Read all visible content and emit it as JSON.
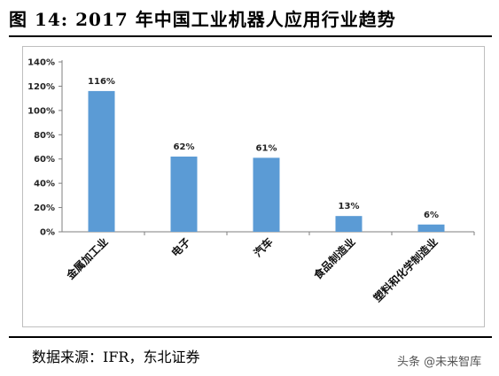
{
  "header": {
    "title": "图 14: 2017 年中国工业机器人应用行业趋势"
  },
  "footer": {
    "source": "数据来源：IFR，东北证券",
    "watermark": "头条 @未来智库"
  },
  "chart_data": {
    "type": "bar",
    "title": "",
    "xlabel": "",
    "ylabel": "",
    "categories": [
      "金属加工业",
      "电子",
      "汽车",
      "食品制造业",
      "塑料和化学制造业"
    ],
    "values": [
      116,
      62,
      61,
      13,
      6
    ],
    "data_labels": [
      "116%",
      "62%",
      "61%",
      "13%",
      "6%"
    ],
    "value_unit": "%",
    "ylim": [
      0,
      140
    ],
    "yticks": [
      0,
      20,
      40,
      60,
      80,
      100,
      120,
      140
    ],
    "ytick_labels": [
      "0%",
      "20%",
      "40%",
      "60%",
      "80%",
      "100%",
      "120%",
      "140%"
    ],
    "bar_color": "#5b9bd5",
    "grid": false,
    "legend": "none"
  }
}
